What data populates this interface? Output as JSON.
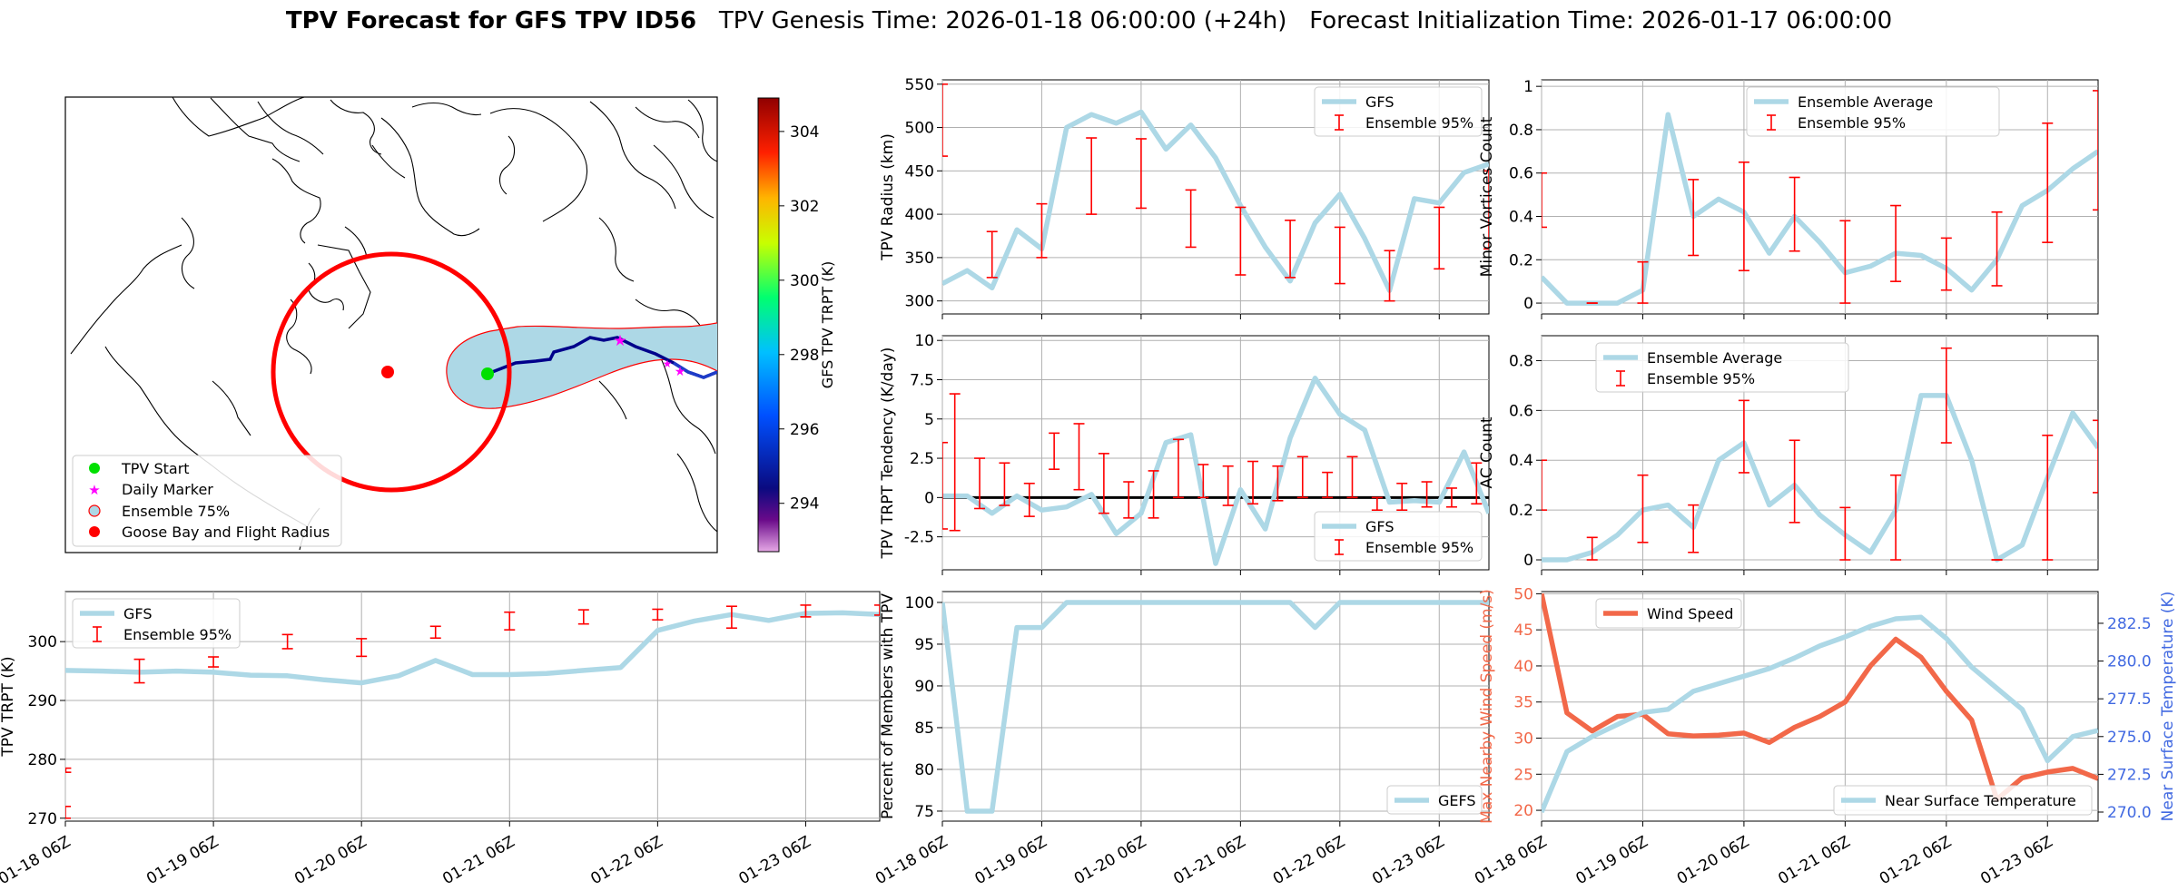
{
  "header": {
    "title_bold": "TPV Forecast for GFS TPV ID56",
    "genesis": "TPV Genesis Time: 2026-01-18 06:00:00 (+24h)",
    "init": "Forecast Initialization Time: 2026-01-17 06:00:00"
  },
  "map": {
    "legend": [
      "TPV Start",
      "Daily Marker",
      "Ensemble 75%",
      "Goose Bay and Flight Radius"
    ],
    "colorbar": {
      "label": "GFS TPV TRPT (K)",
      "ticks": [
        "304",
        "302",
        "300",
        "298",
        "296",
        "294"
      ],
      "range": [
        292.7,
        304.9
      ]
    }
  },
  "colors": {
    "gfs": "#add8e6",
    "ens": "#ff0000",
    "wind": "#f26849",
    "temp_axis": "#4169e1",
    "start": "#00e000",
    "marker": "#ff00ff",
    "goose": "#ff0000"
  },
  "chart_data": [
    {
      "id": "radius",
      "type": "line",
      "ylabel": "TPV Radius (km)",
      "ylim": [
        285,
        555
      ],
      "yticks": [
        300,
        350,
        400,
        450,
        500,
        550
      ],
      "xticks_shown": false,
      "legend": [
        "GFS",
        "Ensemble 95%"
      ],
      "series": [
        {
          "name": "GFS",
          "values": [
            320,
            335,
            315,
            382,
            360,
            500,
            515,
            505,
            518,
            475,
            503,
            465,
            410,
            362,
            323,
            390,
            423,
            372,
            312,
            418,
            413,
            448,
            458
          ]
        }
      ],
      "errorbars": [
        {
          "i": 0,
          "lo": 467,
          "hi": 550
        },
        {
          "i": 2,
          "lo": 327,
          "hi": 380
        },
        {
          "i": 4,
          "lo": 350,
          "hi": 412
        },
        {
          "i": 6,
          "lo": 400,
          "hi": 488
        },
        {
          "i": 8,
          "lo": 407,
          "hi": 487
        },
        {
          "i": 10,
          "lo": 362,
          "hi": 428
        },
        {
          "i": 12,
          "lo": 330,
          "hi": 408
        },
        {
          "i": 14,
          "lo": 327,
          "hi": 393
        },
        {
          "i": 16,
          "lo": 320,
          "hi": 385
        },
        {
          "i": 18,
          "lo": 300,
          "hi": 358
        },
        {
          "i": 20,
          "lo": 337,
          "hi": 408
        },
        {
          "i": 22,
          "lo": 360,
          "hi": 450
        }
      ]
    },
    {
      "id": "minor",
      "type": "line",
      "ylabel": "Minor Vortices Count",
      "ylim": [
        -0.05,
        1.03
      ],
      "yticks": [
        0.0,
        0.2,
        0.4,
        0.6,
        0.8,
        1.0
      ],
      "xticks_shown": false,
      "legend": [
        "Ensemble Average",
        "Ensemble 95%"
      ],
      "series": [
        {
          "name": "Ensemble Average",
          "values": [
            0.12,
            0.0,
            0.0,
            0.0,
            0.06,
            0.87,
            0.4,
            0.48,
            0.42,
            0.23,
            0.4,
            0.28,
            0.14,
            0.17,
            0.23,
            0.22,
            0.16,
            0.06,
            0.2,
            0.45,
            0.52,
            0.62,
            0.7
          ]
        }
      ],
      "errorbars": [
        {
          "i": 0,
          "lo": 0.35,
          "hi": 0.6
        },
        {
          "i": 2,
          "lo": 0.0,
          "hi": 0.0
        },
        {
          "i": 4,
          "lo": 0.0,
          "hi": 0.19
        },
        {
          "i": 6,
          "lo": 0.22,
          "hi": 0.57
        },
        {
          "i": 8,
          "lo": 0.15,
          "hi": 0.65
        },
        {
          "i": 10,
          "lo": 0.24,
          "hi": 0.58
        },
        {
          "i": 12,
          "lo": 0.0,
          "hi": 0.38
        },
        {
          "i": 14,
          "lo": 0.1,
          "hi": 0.45
        },
        {
          "i": 16,
          "lo": 0.06,
          "hi": 0.3
        },
        {
          "i": 18,
          "lo": 0.08,
          "hi": 0.42
        },
        {
          "i": 20,
          "lo": 0.28,
          "hi": 0.83
        },
        {
          "i": 22,
          "lo": 0.43,
          "hi": 0.98
        }
      ]
    },
    {
      "id": "tendency",
      "type": "line",
      "ylabel": "TPV TRPT Tendency (K/day)",
      "ylim": [
        -4.6,
        10.3
      ],
      "yticks": [
        -2.5,
        0.0,
        2.5,
        5.0,
        7.5,
        10.0
      ],
      "zero_line": true,
      "xticks_shown": false,
      "legend": [
        "GFS",
        "Ensemble 95%"
      ],
      "series": [
        {
          "name": "GFS",
          "values": [
            0.1,
            0.1,
            -1.0,
            0.1,
            -0.8,
            -0.6,
            0.2,
            -2.3,
            -1.0,
            3.5,
            4.0,
            -4.2,
            0.5,
            -2.0,
            3.8,
            7.6,
            5.3,
            4.3,
            -0.3,
            -0.2,
            -0.3,
            2.9,
            -1.0
          ]
        }
      ],
      "errorbars": [
        {
          "i": 0,
          "lo": -2.0,
          "hi": 3.5
        },
        {
          "i": 0.5,
          "lo": -2.1,
          "hi": 6.6
        },
        {
          "i": 1.5,
          "lo": -0.7,
          "hi": 2.5
        },
        {
          "i": 2.5,
          "lo": -0.5,
          "hi": 2.2
        },
        {
          "i": 3.5,
          "lo": -1.2,
          "hi": 0.9
        },
        {
          "i": 4.5,
          "lo": 1.8,
          "hi": 4.1
        },
        {
          "i": 5.5,
          "lo": 0.5,
          "hi": 4.7
        },
        {
          "i": 6.5,
          "lo": -1.0,
          "hi": 2.8
        },
        {
          "i": 7.5,
          "lo": -1.3,
          "hi": 1.0
        },
        {
          "i": 8.5,
          "lo": -1.3,
          "hi": 1.7
        },
        {
          "i": 9.5,
          "lo": 0.0,
          "hi": 3.7
        },
        {
          "i": 10.5,
          "lo": 0.0,
          "hi": 2.1
        },
        {
          "i": 11.5,
          "lo": -0.5,
          "hi": 2.0
        },
        {
          "i": 12.5,
          "lo": -0.4,
          "hi": 2.3
        },
        {
          "i": 13.5,
          "lo": -0.2,
          "hi": 2.0
        },
        {
          "i": 14.5,
          "lo": 0.0,
          "hi": 2.6
        },
        {
          "i": 15.5,
          "lo": 0.0,
          "hi": 1.6
        },
        {
          "i": 16.5,
          "lo": 0.0,
          "hi": 2.6
        },
        {
          "i": 17.5,
          "lo": -0.8,
          "hi": 0.0
        },
        {
          "i": 18.5,
          "lo": -0.8,
          "hi": 0.9
        },
        {
          "i": 19.5,
          "lo": -0.6,
          "hi": 1.0
        },
        {
          "i": 20.5,
          "lo": -0.6,
          "hi": 0.6
        },
        {
          "i": 21.5,
          "lo": -0.4,
          "hi": 2.2
        }
      ]
    },
    {
      "id": "ac",
      "type": "line",
      "ylabel": "AC Count",
      "ylim": [
        -0.04,
        0.9
      ],
      "yticks": [
        0.0,
        0.2,
        0.4,
        0.6,
        0.8
      ],
      "xticks_shown": false,
      "legend": [
        "Ensemble Average",
        "Ensemble 95%"
      ],
      "series": [
        {
          "name": "Ensemble Average",
          "values": [
            0.0,
            0.0,
            0.03,
            0.1,
            0.2,
            0.22,
            0.13,
            0.4,
            0.47,
            0.22,
            0.3,
            0.18,
            0.1,
            0.03,
            0.2,
            0.66,
            0.66,
            0.4,
            0.0,
            0.06,
            0.33,
            0.59,
            0.45
          ]
        }
      ],
      "errorbars": [
        {
          "i": 0,
          "lo": 0.2,
          "hi": 0.4
        },
        {
          "i": 2,
          "lo": 0.0,
          "hi": 0.09
        },
        {
          "i": 4,
          "lo": 0.07,
          "hi": 0.34
        },
        {
          "i": 6,
          "lo": 0.03,
          "hi": 0.22
        },
        {
          "i": 8,
          "lo": 0.35,
          "hi": 0.64
        },
        {
          "i": 10,
          "lo": 0.15,
          "hi": 0.48
        },
        {
          "i": 12,
          "lo": 0.0,
          "hi": 0.21
        },
        {
          "i": 14,
          "lo": 0.0,
          "hi": 0.34
        },
        {
          "i": 16,
          "lo": 0.47,
          "hi": 0.85
        },
        {
          "i": 18,
          "lo": 0.0,
          "hi": 0.0
        },
        {
          "i": 20,
          "lo": 0.0,
          "hi": 0.5
        },
        {
          "i": 22,
          "lo": 0.27,
          "hi": 0.56
        }
      ]
    },
    {
      "id": "trpt",
      "type": "line",
      "ylabel": "TPV TRPT (K)",
      "ylim": [
        269.5,
        308.5
      ],
      "yticks": [
        270,
        280,
        290,
        300
      ],
      "xticks_shown": true,
      "legend": [
        "GFS",
        "Ensemble 95%"
      ],
      "series": [
        {
          "name": "GFS",
          "values": [
            295.1,
            295.0,
            294.8,
            295.0,
            294.8,
            294.3,
            294.2,
            293.5,
            293.0,
            294.2,
            296.8,
            294.4,
            294.4,
            294.6,
            295.1,
            295.6,
            301.9,
            303.5,
            304.6,
            303.6,
            304.8,
            304.9,
            304.6
          ]
        }
      ],
      "errorbars": [
        {
          "i": 0,
          "lo": 270,
          "hi": 272
        },
        {
          "i": 0.01,
          "lo": 277.8,
          "hi": 278.5
        },
        {
          "i": 2,
          "lo": 293.0,
          "hi": 297.0
        },
        {
          "i": 4,
          "lo": 295.7,
          "hi": 297.4
        },
        {
          "i": 6,
          "lo": 298.8,
          "hi": 301.2
        },
        {
          "i": 8,
          "lo": 297.5,
          "hi": 300.5
        },
        {
          "i": 10,
          "lo": 300.6,
          "hi": 302.6
        },
        {
          "i": 12,
          "lo": 302.0,
          "hi": 305.0
        },
        {
          "i": 14,
          "lo": 303.0,
          "hi": 305.4
        },
        {
          "i": 16,
          "lo": 303.7,
          "hi": 305.5
        },
        {
          "i": 18,
          "lo": 302.3,
          "hi": 306.0
        },
        {
          "i": 20,
          "lo": 304.2,
          "hi": 306.2
        },
        {
          "i": 22,
          "lo": 304.5,
          "hi": 306.2
        }
      ]
    },
    {
      "id": "members",
      "type": "line",
      "ylabel": "Percent of Members with TPV",
      "ylim": [
        73.8,
        101.3
      ],
      "yticks": [
        75,
        80,
        85,
        90,
        95,
        100
      ],
      "xticks_shown": true,
      "legend": [
        "GEFS"
      ],
      "series": [
        {
          "name": "GEFS",
          "values": [
            100,
            75,
            75,
            97,
            97,
            100,
            100,
            100,
            100,
            100,
            100,
            100,
            100,
            100,
            100,
            97,
            100,
            100,
            100,
            100,
            100,
            100,
            100
          ]
        }
      ],
      "errorbars": []
    },
    {
      "id": "wind",
      "type": "line",
      "ylabel": "Max Nearby Wind Speed (m/s)",
      "ylabel_right": "Near Surface Temperature (K)",
      "ylim": [
        18.5,
        50.3
      ],
      "yticks": [
        20,
        25,
        30,
        35,
        40,
        45,
        50
      ],
      "ylim_right": [
        269.4,
        284.6
      ],
      "yticks_right": [
        270.0,
        272.5,
        275.0,
        277.5,
        280.0,
        282.5
      ],
      "xticks_shown": true,
      "legend": [
        "Wind Speed",
        "Near Surface Temperature"
      ],
      "series": [
        {
          "name": "Wind Speed",
          "axis": "left",
          "values": [
            50,
            33.5,
            31,
            33,
            33.3,
            30.6,
            30.3,
            30.4,
            30.7,
            29.4,
            31.5,
            33,
            35,
            40,
            43.7,
            41.2,
            36.5,
            32.5,
            21.5,
            24.5,
            25.3,
            25.8,
            24.4
          ]
        },
        {
          "name": "Near Surface Temperature",
          "axis": "right",
          "values": [
            270.0,
            274.0,
            275.0,
            275.8,
            276.6,
            276.8,
            278.0,
            278.5,
            279.0,
            279.5,
            280.2,
            281.0,
            281.6,
            282.3,
            282.8,
            282.9,
            281.5,
            279.6,
            278.2,
            276.8,
            273.4,
            275.0,
            275.4
          ]
        }
      ],
      "errorbars": []
    }
  ],
  "x_axis": {
    "n_points": 23,
    "tick_labels": [
      "01-18 06Z",
      "01-19 06Z",
      "01-20 06Z",
      "01-21 06Z",
      "01-22 06Z",
      "01-23 06Z"
    ],
    "tick_index": [
      0,
      4,
      8,
      12,
      16,
      20
    ]
  }
}
